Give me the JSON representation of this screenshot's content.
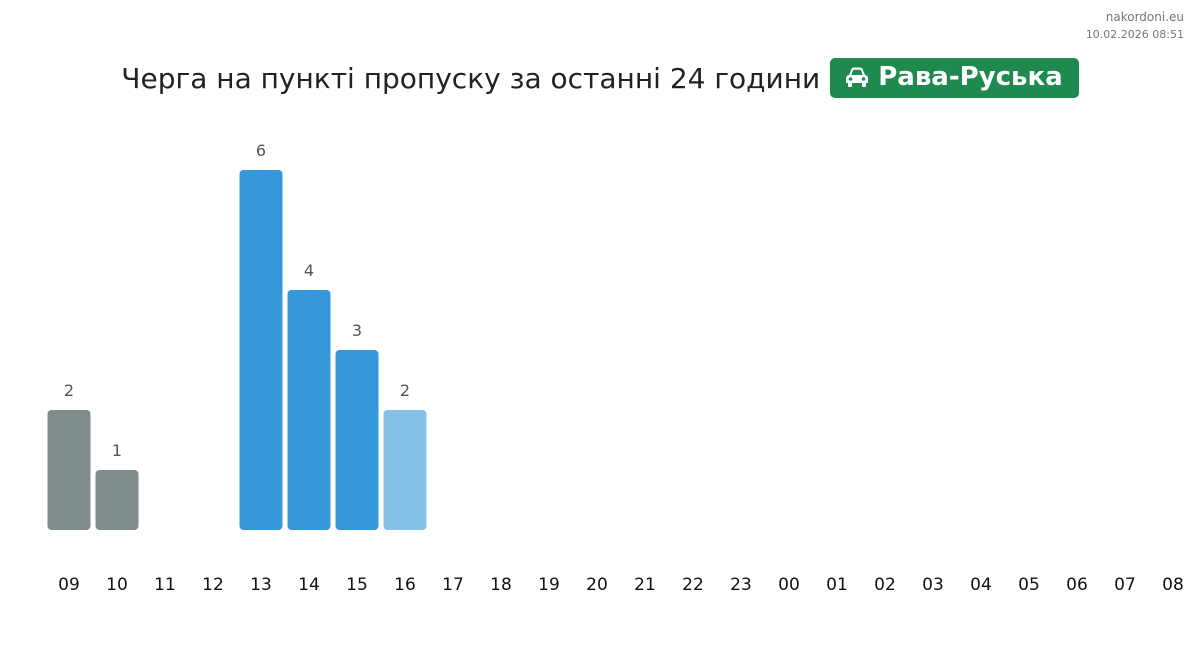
{
  "site": "nakordoni.eu",
  "timestamp": "10.02.2026 08:51",
  "chart_data": {
    "type": "bar",
    "title": "Черга на пункті пропуску за останні 24 години",
    "badge": "Рава-Руська",
    "categories": [
      "09",
      "10",
      "11",
      "12",
      "13",
      "14",
      "15",
      "16",
      "17",
      "18",
      "19",
      "20",
      "21",
      "22",
      "23",
      "00",
      "01",
      "02",
      "03",
      "04",
      "05",
      "06",
      "07",
      "08"
    ],
    "values": [
      2,
      1,
      null,
      null,
      6,
      4,
      3,
      2,
      null,
      null,
      null,
      null,
      null,
      null,
      null,
      null,
      null,
      null,
      null,
      null,
      null,
      null,
      null,
      null
    ],
    "colors": [
      "#7f8c8d",
      "#7f8c8d",
      null,
      null,
      "#3498db",
      "#3498db",
      "#3498db",
      "#85c1e9",
      null,
      null,
      null,
      null,
      null,
      null,
      null,
      null,
      null,
      null,
      null,
      null,
      null,
      null,
      null,
      null
    ],
    "badge_color": "#1e8a4f"
  }
}
